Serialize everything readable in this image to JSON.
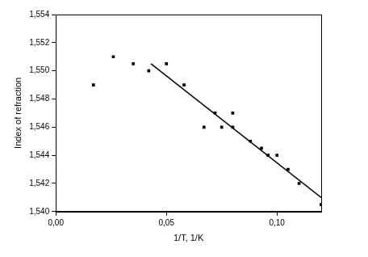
{
  "chart_data": {
    "type": "scatter",
    "x_label": "1/T, 1/K",
    "y_label": "Index of refraction",
    "xlim": [
      0,
      0.12
    ],
    "xticks": [
      {
        "value": 0,
        "label": "0,00"
      },
      {
        "value": 0.05,
        "label": "0,05"
      },
      {
        "value": 0.1,
        "label": "0,10"
      }
    ],
    "ylim": [
      1.54,
      1.554
    ],
    "yticks": [
      {
        "value": 1.54,
        "label": "1,540"
      },
      {
        "value": 1.542,
        "label": "1,542"
      },
      {
        "value": 1.544,
        "label": "1,544"
      },
      {
        "value": 1.546,
        "label": "1,546"
      },
      {
        "value": 1.548,
        "label": "1,548"
      },
      {
        "value": 1.55,
        "label": "1,550"
      },
      {
        "value": 1.552,
        "label": "1,552"
      },
      {
        "value": 1.554,
        "label": "1,554"
      }
    ],
    "grid": false,
    "series": [
      {
        "type": "scatter",
        "marker": "square",
        "color": "#000000",
        "x": [
          0.017,
          0.026,
          0.035,
          0.042,
          0.05,
          0.058,
          0.067,
          0.072,
          0.075,
          0.08,
          0.08,
          0.088,
          0.093,
          0.096,
          0.1,
          0.105,
          0.11,
          0.12
        ],
        "values": [
          1.549,
          1.551,
          1.5505,
          1.55,
          1.5505,
          1.549,
          1.546,
          1.547,
          1.546,
          1.547,
          1.546,
          1.545,
          1.5445,
          1.544,
          1.544,
          1.543,
          1.542,
          1.5405
        ]
      },
      {
        "type": "line",
        "line_style": "solid",
        "color": "#000000",
        "x": [
          0.043,
          0.12
        ],
        "values": [
          1.5505,
          1.541
        ]
      }
    ]
  }
}
